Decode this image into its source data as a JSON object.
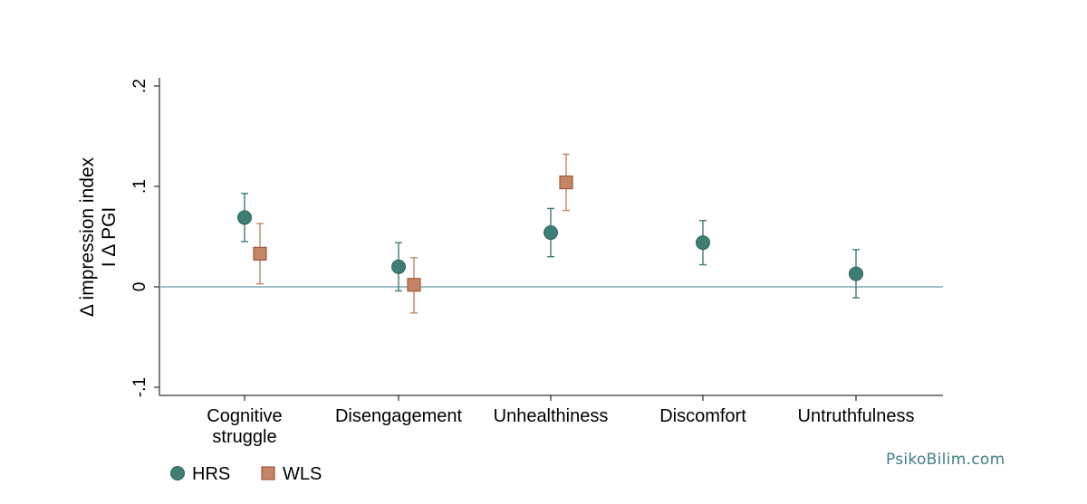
{
  "chart_data": {
    "type": "scatter",
    "categories": [
      "Cognitive struggle",
      "Disengagement",
      "Unhealthiness",
      "Discomfort",
      "Untruthfulness"
    ],
    "category_label_lines": [
      [
        "Cognitive",
        "struggle"
      ],
      [
        "Disengagement"
      ],
      [
        "Unhealthiness"
      ],
      [
        "Discomfort"
      ],
      [
        "Untruthfulness"
      ]
    ],
    "ylabel_lines": [
      "Δ impression index",
      "I Δ PGI"
    ],
    "ylim": [
      -0.1,
      0.2
    ],
    "yticks": [
      -0.1,
      0,
      0.1,
      0.2
    ],
    "ytick_labels": [
      "-.1",
      "0",
      ".1",
      ".2"
    ],
    "reference_line": 0,
    "grid": false,
    "legend_position": "bottom-left",
    "series": [
      {
        "name": "HRS",
        "marker": "circle",
        "color": "#3e7e74",
        "values": [
          0.069,
          0.02,
          0.054,
          0.044,
          0.013
        ],
        "ci_low": [
          0.045,
          -0.004,
          0.03,
          0.022,
          -0.011
        ],
        "ci_high": [
          0.093,
          0.044,
          0.078,
          0.066,
          0.037
        ]
      },
      {
        "name": "WLS",
        "marker": "square",
        "color": "#c68466",
        "values": [
          0.033,
          0.002,
          0.104,
          null,
          null
        ],
        "ci_low": [
          0.003,
          -0.026,
          0.076,
          null,
          null
        ],
        "ci_high": [
          0.063,
          0.029,
          0.132,
          null,
          null
        ]
      }
    ]
  },
  "watermark": "PsikoBilim.com"
}
